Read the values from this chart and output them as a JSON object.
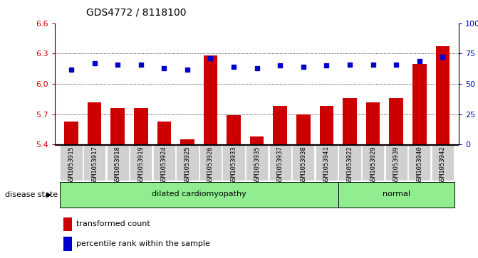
{
  "title": "GDS4772 / 8118100",
  "samples": [
    "GSM1053915",
    "GSM1053917",
    "GSM1053918",
    "GSM1053919",
    "GSM1053924",
    "GSM1053925",
    "GSM1053926",
    "GSM1053933",
    "GSM1053935",
    "GSM1053937",
    "GSM1053938",
    "GSM1053941",
    "GSM1053922",
    "GSM1053929",
    "GSM1053939",
    "GSM1053940",
    "GSM1053942"
  ],
  "transformed_count": [
    5.63,
    5.82,
    5.76,
    5.76,
    5.63,
    5.45,
    6.28,
    5.69,
    5.48,
    5.78,
    5.7,
    5.78,
    5.86,
    5.82,
    5.86,
    6.2,
    6.37
  ],
  "percentile_rank": [
    62,
    67,
    66,
    66,
    63,
    62,
    71,
    64,
    63,
    65,
    64,
    65,
    66,
    66,
    66,
    69,
    72
  ],
  "disease_state_spans": [
    {
      "label": "dilated cardiomyopathy",
      "start": 0,
      "end": 11
    },
    {
      "label": "normal",
      "start": 12,
      "end": 16
    }
  ],
  "ylim_left": [
    5.4,
    6.6
  ],
  "ylim_right": [
    0,
    100
  ],
  "yticks_left": [
    5.4,
    5.7,
    6.0,
    6.3,
    6.6
  ],
  "yticks_right": [
    0,
    25,
    50,
    75,
    100
  ],
  "bar_color": "#cc0000",
  "dot_color": "#0000cc",
  "label_bg_color": "#d0d0d0",
  "disease_color": "#90ee90",
  "legend_bar_label": "transformed count",
  "legend_dot_label": "percentile rank within the sample",
  "disease_state_text": "disease state"
}
